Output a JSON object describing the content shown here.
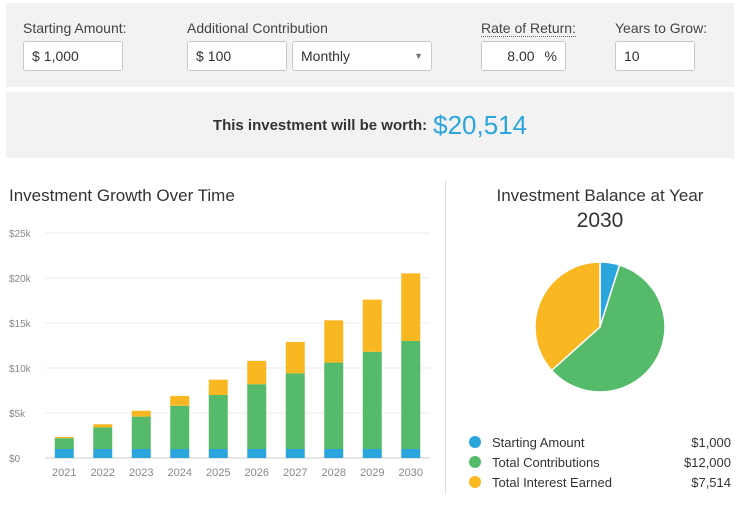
{
  "form": {
    "starting_amount": {
      "label": "Starting Amount:",
      "prefix": "$",
      "value": "1,000"
    },
    "additional_contribution": {
      "label": "Additional Contribution",
      "prefix": "$",
      "value": "100"
    },
    "frequency": {
      "value": "Monthly"
    },
    "rate_of_return": {
      "label": "Rate of Return:",
      "value": "8.00",
      "suffix": "%"
    },
    "years_to_grow": {
      "label": "Years to Grow:",
      "value": "10"
    }
  },
  "result": {
    "label": "This investment will be worth:",
    "value": "$20,514"
  },
  "colors": {
    "starting": "#2aa6dd",
    "contributions": "#55bb6a",
    "interest": "#f9b722"
  },
  "bar_chart": {
    "title": "Investment Growth Over Time"
  },
  "pie_chart": {
    "title": "Investment Balance at Year",
    "year": "2030"
  },
  "legend": [
    {
      "name": "Starting Amount",
      "value": "$1,000",
      "color": "#2aa6dd"
    },
    {
      "name": "Total Contributions",
      "value": "$12,000",
      "color": "#55bb6a"
    },
    {
      "name": "Total Interest Earned",
      "value": "$7,514",
      "color": "#f9b722"
    }
  ],
  "chart_data": [
    {
      "type": "bar",
      "stacked": true,
      "title": "Investment Growth Over Time",
      "categories": [
        "2021",
        "2022",
        "2023",
        "2024",
        "2025",
        "2026",
        "2027",
        "2028",
        "2029",
        "2030"
      ],
      "y_ticks": [
        "$0",
        "$5k",
        "$10k",
        "$15k",
        "$20k",
        "$25k"
      ],
      "ylim": [
        0,
        25000
      ],
      "grid": true,
      "series": [
        {
          "name": "Starting Amount",
          "color": "#2aa6dd",
          "values": [
            1000,
            1000,
            1000,
            1000,
            1000,
            1000,
            1000,
            1000,
            1000,
            1000
          ]
        },
        {
          "name": "Total Contributions",
          "color": "#55bb6a",
          "values": [
            1200,
            2400,
            3600,
            4800,
            6000,
            7200,
            8400,
            9600,
            10800,
            12000
          ]
        },
        {
          "name": "Total Interest Earned",
          "color": "#f9b722",
          "values": [
            130,
            350,
            650,
            1100,
            1700,
            2600,
            3500,
            4700,
            5800,
            7514
          ]
        }
      ]
    },
    {
      "type": "pie",
      "title": "Investment Balance at Year",
      "subtitle": "2030",
      "labels": [
        "Starting Amount",
        "Total Contributions",
        "Total Interest Earned"
      ],
      "values": [
        1000,
        12000,
        7514
      ],
      "colors": [
        "#2aa6dd",
        "#55bb6a",
        "#f9b722"
      ]
    }
  ]
}
